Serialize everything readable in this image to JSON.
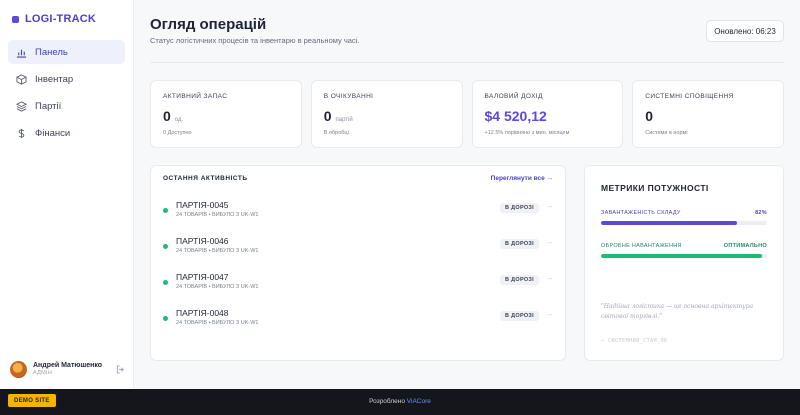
{
  "brand": {
    "name": "LOGI-TRACK"
  },
  "nav": [
    {
      "label": "Панель",
      "icon": "bar-chart-icon",
      "active": true
    },
    {
      "label": "Інвентар",
      "icon": "box-icon",
      "active": false
    },
    {
      "label": "Партії",
      "icon": "layers-icon",
      "active": false
    },
    {
      "label": "Фінанси",
      "icon": "dollar-icon",
      "active": false
    }
  ],
  "user": {
    "name": "Андрей Матюшенко",
    "role": "АДМІН"
  },
  "header": {
    "title": "Огляд операцій",
    "subtitle": "Статус логістичних процесів та інвентарю в реальному часі.",
    "updated": "Оновлено: 06:23"
  },
  "stats": [
    {
      "label": "АКТИВНИЙ ЗАПАС",
      "value": "0",
      "unit": "од.",
      "note": "0 Доступно"
    },
    {
      "label": "В ОЧІКУВАННІ",
      "value": "0",
      "unit": "партій",
      "note": "В обробці"
    },
    {
      "label": "ВАЛОВИЙ ДОХІД",
      "value": "$4 520,12",
      "unit": "",
      "note": "+12.5% порівняно з мин. місяцем"
    },
    {
      "label": "СИСТЕМНІ СПОВІЩЕННЯ",
      "value": "0",
      "unit": "",
      "note": "Системи в нормі"
    }
  ],
  "activity": {
    "title": "ОСТАННЯ АКТИВНІСТЬ",
    "link": "Переглянути все →",
    "items": [
      {
        "name": "ПАРТІЯ-0045",
        "meta": "24 ТОВАРІВ • ВИБУЛО З UK-W1",
        "status": "В ДОРОЗІ"
      },
      {
        "name": "ПАРТІЯ-0046",
        "meta": "24 ТОВАРІВ • ВИБУЛО З UK-W1",
        "status": "В ДОРОЗІ"
      },
      {
        "name": "ПАРТІЯ-0047",
        "meta": "24 ТОВАРІВ • ВИБУЛО З UK-W1",
        "status": "В ДОРОЗІ"
      },
      {
        "name": "ПАРТІЯ-0048",
        "meta": "24 ТОВАРІВ • ВИБУЛО З UK-W1",
        "status": "В ДОРОЗІ"
      }
    ]
  },
  "metrics": {
    "title": "МЕТРИКИ ПОТУЖНОСТІ",
    "items": [
      {
        "label": "ЗАВАНТАЖЕНІСТЬ СКЛАДУ",
        "value": "82%",
        "fill": 0.82,
        "color": "#5b4bdb"
      },
      {
        "label": "ОБРОБНЕ НАВАНТАЖЕННЯ",
        "value": "ОПТИМАЛЬНО",
        "fill": 0.97,
        "color": "#1fb97a"
      }
    ],
    "quote": "\"Надійна логістика — це основна архітектура світової торгівлі.\"",
    "signature": "— СИСТЕМНИЙ_СТАН_ОК"
  },
  "footer": {
    "badge": "DEMO SITE",
    "credit_text": "Розроблено ",
    "credit_link": "ViACore"
  }
}
